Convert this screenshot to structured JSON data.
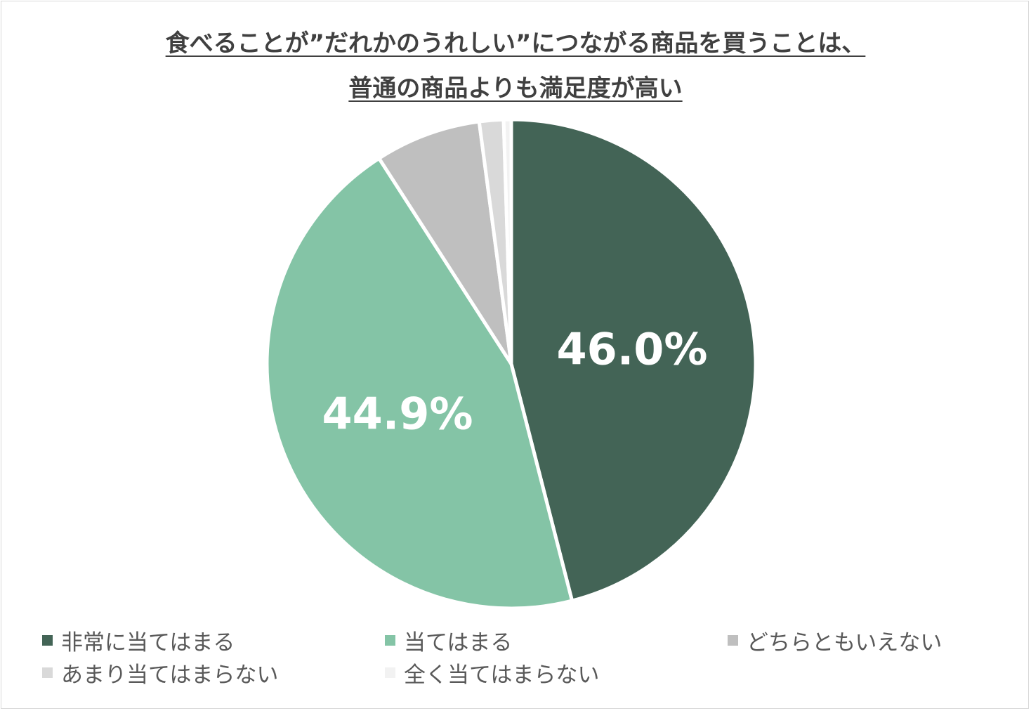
{
  "title_line1": "食べることが”だれかのうれしい”につながる商品を買うことは、",
  "title_line2": "普通の商品よりも満足度が高い",
  "chart_data": {
    "type": "pie",
    "title": "食べることが”だれかのうれしい”につながる商品を買うことは、普通の商品よりも満足度が高い",
    "categories": [
      "非常に当てはまる",
      "当てはまる",
      "どちらともいえない",
      "あまり当てはまらない",
      "全く当てはまらない"
    ],
    "values": [
      46.0,
      44.9,
      7.0,
      1.6,
      0.5
    ],
    "colors": [
      "#436456",
      "#84c4a6",
      "#bfbfbf",
      "#d9d9d9",
      "#f2f2f2"
    ],
    "data_labels": [
      "46.0%",
      "44.9%",
      "",
      "",
      ""
    ],
    "legend_position": "bottom"
  },
  "legend": [
    {
      "label": "非常に当てはまる",
      "color": "#436456"
    },
    {
      "label": "当てはまる",
      "color": "#84c4a6"
    },
    {
      "label": "どちらともいえない",
      "color": "#bfbfbf"
    },
    {
      "label": "あまり当てはまらない",
      "color": "#d9d9d9"
    },
    {
      "label": "全く当てはまらない",
      "color": "#f2f2f2"
    }
  ]
}
